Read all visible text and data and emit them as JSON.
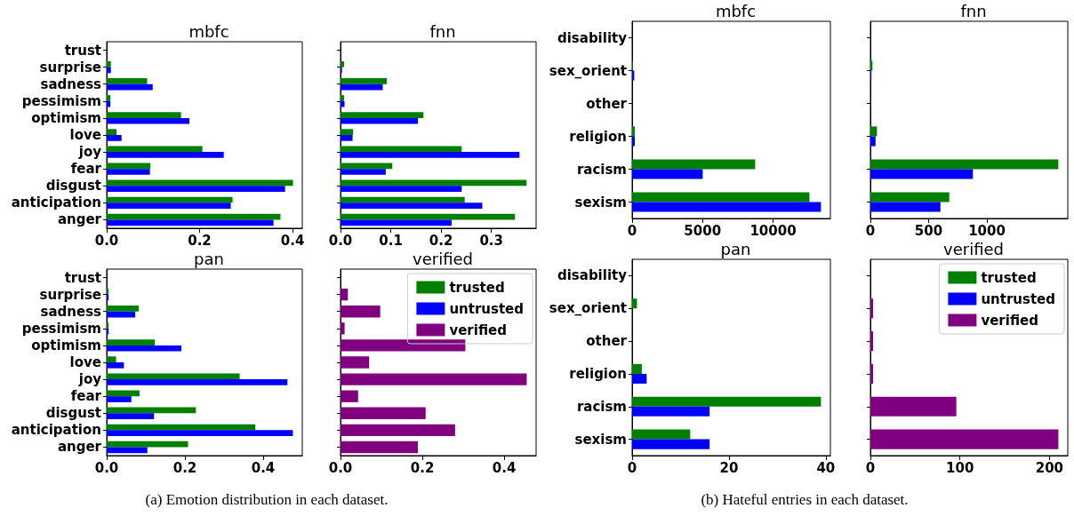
{
  "chart_data": [
    {
      "type": "bar",
      "orientation": "horizontal",
      "title": "mbfc",
      "categories": [
        "trust",
        "surprise",
        "sadness",
        "pessimism",
        "optimism",
        "love",
        "joy",
        "fear",
        "disgust",
        "anticipation",
        "anger"
      ],
      "xlim": [
        0,
        0.421
      ],
      "xticks": [
        {
          "value": 0,
          "label": "0.0"
        },
        {
          "value": 0.2,
          "label": "0.2"
        },
        {
          "value": 0.4,
          "label": "0.4"
        }
      ],
      "series": [
        {
          "color": "#008000",
          "values": [
            0,
            0.009,
            0.087,
            0.008,
            0.16,
            0.021,
            0.206,
            0.094,
            0.401,
            0.271,
            0.374
          ]
        },
        {
          "color": "#0000ff",
          "values": [
            0,
            0.009,
            0.099,
            0.008,
            0.178,
            0.032,
            0.252,
            0.093,
            0.384,
            0.267,
            0.359
          ]
        }
      ]
    },
    {
      "type": "bar",
      "orientation": "horizontal",
      "title": "fnn",
      "tick_labels": "x",
      "categories": [
        null,
        null,
        null,
        null,
        null,
        null,
        null,
        null,
        null,
        null,
        null
      ],
      "xlim": [
        0,
        0.389
      ],
      "xticks": [
        {
          "value": 0,
          "label": "0.0"
        },
        0.1,
        0.2,
        0.3
      ],
      "series": [
        {
          "color": "#008000",
          "values": [
            0,
            0.007,
            0.092,
            0.007,
            0.165,
            0.025,
            0.241,
            0.103,
            0.37,
            0.247,
            0.347
          ]
        },
        {
          "color": "#0000ff",
          "values": [
            0,
            0.003,
            0.084,
            0.008,
            0.154,
            0.024,
            0.356,
            0.09,
            0.241,
            0.282,
            0.221
          ]
        }
      ]
    },
    {
      "type": "bar",
      "orientation": "horizontal",
      "title": "pan",
      "categories": [
        "trust",
        "surprise",
        "sadness",
        "pessimism",
        "optimism",
        "love",
        "joy",
        "fear",
        "disgust",
        "anticipation",
        "anger"
      ],
      "xlim": [
        0,
        0.5
      ],
      "xticks": [
        {
          "value": 0,
          "label": "0.0"
        },
        0.2,
        0.4
      ],
      "annotations": [
        "(a) Emotion distribution in each dataset."
      ],
      "series": [
        {
          "color": "#008000",
          "values": [
            0,
            0.005,
            0.082,
            0.005,
            0.123,
            0.024,
            0.34,
            0.084,
            0.228,
            0.38,
            0.208
          ]
        },
        {
          "color": "#0000ff",
          "values": [
            0,
            0.005,
            0.073,
            0.005,
            0.191,
            0.044,
            0.462,
            0.063,
            0.121,
            0.476,
            0.104
          ]
        }
      ]
    },
    {
      "type": "bar",
      "orientation": "horizontal",
      "title": "verified",
      "tick_labels": "x",
      "legend": "top right",
      "categories": [
        null,
        null,
        null,
        null,
        null,
        null,
        null,
        null,
        null,
        null,
        null
      ],
      "xlim": [
        0,
        0.478
      ],
      "xticks": [
        {
          "value": 0,
          "label": "0.0"
        },
        0.2,
        0.4
      ],
      "series": [
        {
          "name": "trusted",
          "color": "#008000",
          "values": [
            null,
            null,
            null,
            null,
            null,
            null,
            null,
            null,
            null,
            null,
            null
          ]
        },
        {
          "name": "untrusted",
          "color": "#0000ff",
          "values": [
            null,
            null,
            null,
            null,
            null,
            null,
            null,
            null,
            null,
            null,
            null
          ]
        },
        {
          "name": "verified",
          "color": "#800080",
          "values": [
            0,
            0.018,
            0.097,
            0.01,
            0.305,
            0.07,
            0.455,
            0.043,
            0.208,
            0.28,
            0.189
          ]
        }
      ]
    },
    {
      "type": "bar",
      "orientation": "horizontal",
      "title": "mbfc",
      "categories": [
        "disability",
        "sex_orient",
        "other",
        "religion",
        "racism",
        "sexism"
      ],
      "xlim": [
        0,
        14070
      ],
      "xticks": [
        0,
        5000,
        10000
      ],
      "series": [
        {
          "color": "#008000",
          "values": [
            0,
            50,
            0,
            190,
            8730,
            12580
          ]
        },
        {
          "color": "#0000ff",
          "values": [
            0,
            150,
            0,
            190,
            5010,
            13400
          ]
        }
      ]
    },
    {
      "type": "bar",
      "orientation": "horizontal",
      "title": "fnn",
      "tick_labels": "x",
      "categories": [
        null,
        null,
        null,
        null,
        null,
        null
      ],
      "xlim": [
        0,
        1694
      ],
      "xticks": [
        0,
        500,
        1000
      ],
      "series": [
        {
          "color": "#008000",
          "values": [
            0,
            18,
            0,
            56,
            1613,
            677
          ]
        },
        {
          "color": "#0000ff",
          "values": [
            0,
            9,
            0,
            44,
            880,
            601
          ]
        }
      ]
    },
    {
      "type": "bar",
      "orientation": "horizontal",
      "title": "pan",
      "categories": [
        "disability",
        "sex_orient",
        "other",
        "religion",
        "racism",
        "sexism"
      ],
      "xlim": [
        0,
        40.95
      ],
      "xticks": [
        0,
        20,
        40
      ],
      "annotations": [
        "(b) Hateful entries in each dataset."
      ],
      "series": [
        {
          "color": "#008000",
          "values": [
            0,
            1,
            0,
            2,
            39,
            12
          ]
        },
        {
          "color": "#0000ff",
          "values": [
            0,
            0,
            0,
            3,
            16,
            16
          ]
        }
      ]
    },
    {
      "type": "bar",
      "orientation": "horizontal",
      "title": "verified",
      "tick_labels": "x",
      "legend": "top right",
      "categories": [
        null,
        null,
        null,
        null,
        null,
        null
      ],
      "xlim": [
        0,
        220.5
      ],
      "xticks": [
        0,
        100,
        200
      ],
      "series": [
        {
          "name": "trusted",
          "color": "#008000",
          "values": [
            null,
            null,
            null,
            null,
            null,
            null
          ]
        },
        {
          "name": "untrusted",
          "color": "#0000ff",
          "values": [
            null,
            null,
            null,
            null,
            null,
            null
          ]
        },
        {
          "name": "verified",
          "color": "#800080",
          "values": [
            0,
            3,
            3,
            3,
            96,
            210
          ]
        }
      ]
    }
  ]
}
